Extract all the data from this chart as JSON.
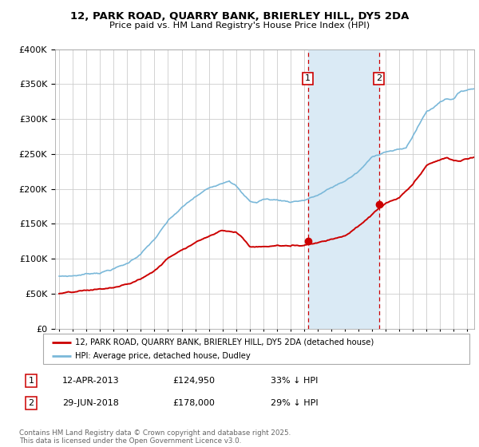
{
  "title_line1": "12, PARK ROAD, QUARRY BANK, BRIERLEY HILL, DY5 2DA",
  "title_line2": "Price paid vs. HM Land Registry's House Price Index (HPI)",
  "legend_entry1": "12, PARK ROAD, QUARRY BANK, BRIERLEY HILL, DY5 2DA (detached house)",
  "legend_entry2": "HPI: Average price, detached house, Dudley",
  "sale1_date": "12-APR-2013",
  "sale1_price": 124950,
  "sale1_note": "33% ↓ HPI",
  "sale2_date": "29-JUN-2018",
  "sale2_price": 178000,
  "sale2_note": "29% ↓ HPI",
  "footer": "Contains HM Land Registry data © Crown copyright and database right 2025.\nThis data is licensed under the Open Government Licence v3.0.",
  "hpi_color": "#7ab8d9",
  "price_color": "#cc0000",
  "shade_color": "#daeaf5",
  "grid_color": "#cccccc",
  "bg_color": "#ffffff",
  "sale1_x": 2013.28,
  "sale2_x": 2018.49,
  "ylim_max": 400000,
  "xlim_min": 1994.7,
  "xlim_max": 2025.5
}
